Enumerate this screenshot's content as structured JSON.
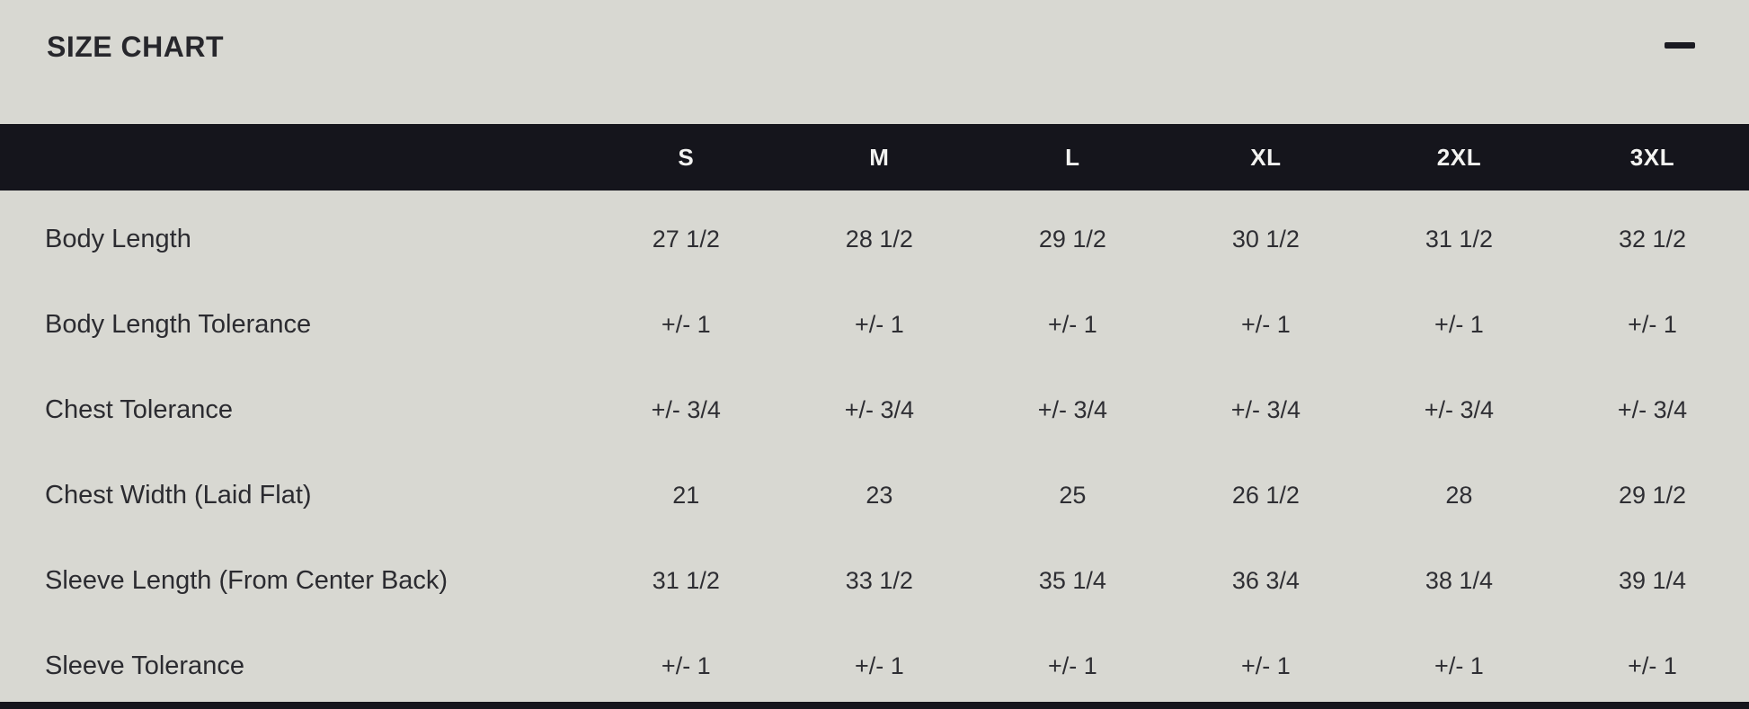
{
  "window": {
    "title": "SIZE CHART"
  },
  "colors": {
    "background": "#d8d8d2",
    "header_bg": "#15151c",
    "header_text": "#f3f3f1",
    "body_text": "#2b2b30",
    "bottom_bar": "#15151c"
  },
  "chart_data": {
    "type": "table",
    "title": "SIZE CHART",
    "columns": [
      "S",
      "M",
      "L",
      "XL",
      "2XL",
      "3XL"
    ],
    "rows": [
      {
        "label": "Body Length",
        "values": [
          "27 1/2",
          "28 1/2",
          "29 1/2",
          "30 1/2",
          "31 1/2",
          "32 1/2"
        ]
      },
      {
        "label": "Body Length Tolerance",
        "values": [
          "+/- 1",
          "+/- 1",
          "+/- 1",
          "+/- 1",
          "+/- 1",
          "+/- 1"
        ]
      },
      {
        "label": "Chest Tolerance",
        "values": [
          "+/- 3/4",
          "+/- 3/4",
          "+/- 3/4",
          "+/- 3/4",
          "+/- 3/4",
          "+/- 3/4"
        ]
      },
      {
        "label": "Chest Width (Laid Flat)",
        "values": [
          "21",
          "23",
          "25",
          "26 1/2",
          "28",
          "29 1/2"
        ]
      },
      {
        "label": "Sleeve Length (From Center Back)",
        "values": [
          "31 1/2",
          "33 1/2",
          "35 1/4",
          "36 3/4",
          "38 1/4",
          "39 1/4"
        ]
      },
      {
        "label": "Sleeve Tolerance",
        "values": [
          "+/- 1",
          "+/- 1",
          "+/- 1",
          "+/- 1",
          "+/- 1",
          "+/- 1"
        ]
      }
    ]
  }
}
